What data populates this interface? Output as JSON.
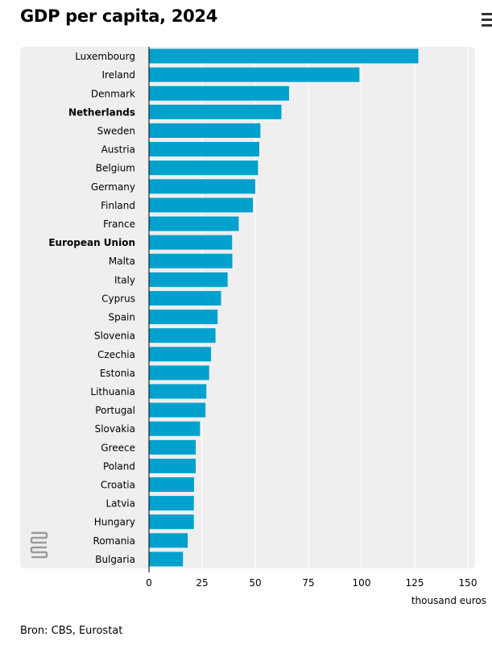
{
  "title": "GDP per capita, 2024",
  "source": "Bron: CBS, Eurostat",
  "logo_text": "cbs",
  "menu_icon": "hamburger-menu-icon",
  "colors": {
    "bar": "#00a1cd",
    "panel": "#efefef",
    "grid": "#ffffff",
    "axis": "#000000"
  },
  "chart_data": {
    "type": "bar",
    "orientation": "horizontal",
    "categories": [
      "Luxembourg",
      "Ireland",
      "Denmark",
      "Netherlands",
      "Sweden",
      "Austria",
      "Belgium",
      "Germany",
      "Finland",
      "France",
      "European Union",
      "Malta",
      "Italy",
      "Cyprus",
      "Spain",
      "Slovenia",
      "Czechia",
      "Estonia",
      "Lithuania",
      "Portugal",
      "Slovakia",
      "Greece",
      "Poland",
      "Croatia",
      "Latvia",
      "Hungary",
      "Romania",
      "Bulgaria"
    ],
    "highlighted": [
      "Netherlands",
      "European Union"
    ],
    "values": [
      126.7,
      99.0,
      65.9,
      62.3,
      52.4,
      51.9,
      51.3,
      50.0,
      48.9,
      42.2,
      39.1,
      39.2,
      37.0,
      33.9,
      32.3,
      31.3,
      29.2,
      28.3,
      27.0,
      26.6,
      24.0,
      22.0,
      22.0,
      21.2,
      21.1,
      21.1,
      18.2,
      16.0
    ],
    "xlabel": "thousand euros",
    "ylabel": "",
    "xlim": [
      0,
      150
    ],
    "ticks": [
      0,
      25,
      50,
      75,
      100,
      125,
      150
    ],
    "grid": true
  }
}
